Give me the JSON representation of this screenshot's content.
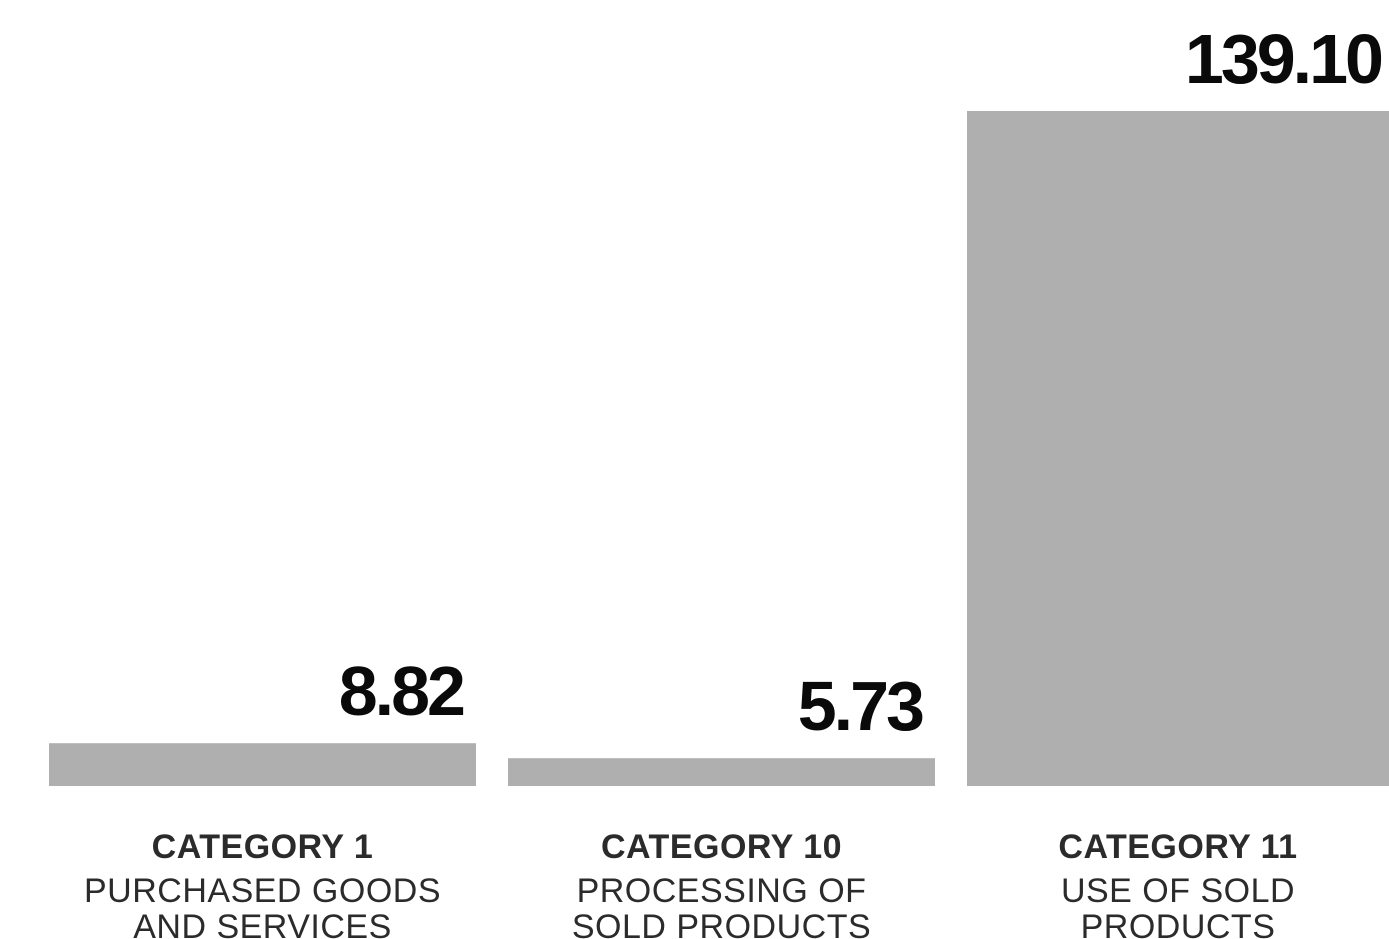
{
  "chart_data": {
    "type": "bar",
    "title": "",
    "xlabel": "",
    "ylabel": "",
    "categories": [
      "CATEGORY 1",
      "CATEGORY 10",
      "CATEGORY 11"
    ],
    "category_descriptions": [
      [
        "PURCHASED GOODS",
        "AND SERVICES"
      ],
      [
        "PROCESSING OF",
        "SOLD PRODUCTS"
      ],
      [
        "USE OF SOLD",
        "PRODUCTS"
      ]
    ],
    "values": [
      8.82,
      5.73,
      139.1
    ],
    "value_labels": [
      "8.82",
      "5.73",
      "139.10"
    ],
    "ylim": [
      0,
      139.1
    ],
    "grid": false,
    "legend": "none",
    "bar_color": "#b0afb0",
    "value_color": "#0a0a0a",
    "label_color": "#2b2b2b",
    "background": "#ffffff"
  }
}
